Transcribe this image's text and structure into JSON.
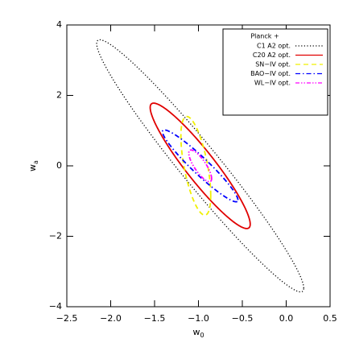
{
  "chart_data": {
    "type": "ellipse",
    "xlabel": {
      "main": "w",
      "sub": "0"
    },
    "ylabel": {
      "main": "w",
      "sub": "a"
    },
    "xlim": [
      -2.5,
      0.5
    ],
    "ylim": [
      -4,
      4
    ],
    "xticks": [
      {
        "value": -2.5,
        "label": "−2.5"
      },
      {
        "value": -2.0,
        "label": "−2.0"
      },
      {
        "value": -1.5,
        "label": "−1.5"
      },
      {
        "value": -1.0,
        "label": "−1.0"
      },
      {
        "value": -0.5,
        "label": "−0.5"
      },
      {
        "value": 0.0,
        "label": "0.0"
      },
      0.5
    ],
    "yticks": [
      {
        "value": -4,
        "label": "−4"
      },
      {
        "value": -2,
        "label": "−2"
      },
      0,
      2,
      4
    ],
    "legend_title": "Planck +",
    "legend_position": "upper right",
    "series": [
      {
        "name": "C1  A2 opt.",
        "color": "#000000",
        "dash": "1.2,2.4",
        "center": [
          -0.98,
          0.0
        ],
        "sigma": [
          1.18,
          3.58
        ],
        "rho": -0.97
      },
      {
        "name": "C20 A2 opt.",
        "color": "#e00000",
        "dash": "none",
        "center": [
          -0.98,
          0.0
        ],
        "sigma": [
          0.57,
          1.78
        ],
        "rho": -0.93
      },
      {
        "name": "SN−IV opt.",
        "color": "#f0f000",
        "dash": "6,4",
        "center": [
          -1.03,
          0.0
        ],
        "sigma": [
          0.17,
          1.4
        ],
        "rho": -0.6
      },
      {
        "name": "BAO−IV opt.",
        "color": "#0000ff",
        "dash": "6,3,1.5,3",
        "center": [
          -0.98,
          0.0
        ],
        "sigma": [
          0.43,
          1.02
        ],
        "rho": -0.95
      },
      {
        "name": "WL−IV opt.",
        "color": "#ff00ff",
        "dash": "5,2,1.5,2,1.5,2",
        "center": [
          -0.98,
          0.0
        ],
        "sigma": [
          0.13,
          0.45
        ],
        "rho": -0.8
      }
    ]
  }
}
